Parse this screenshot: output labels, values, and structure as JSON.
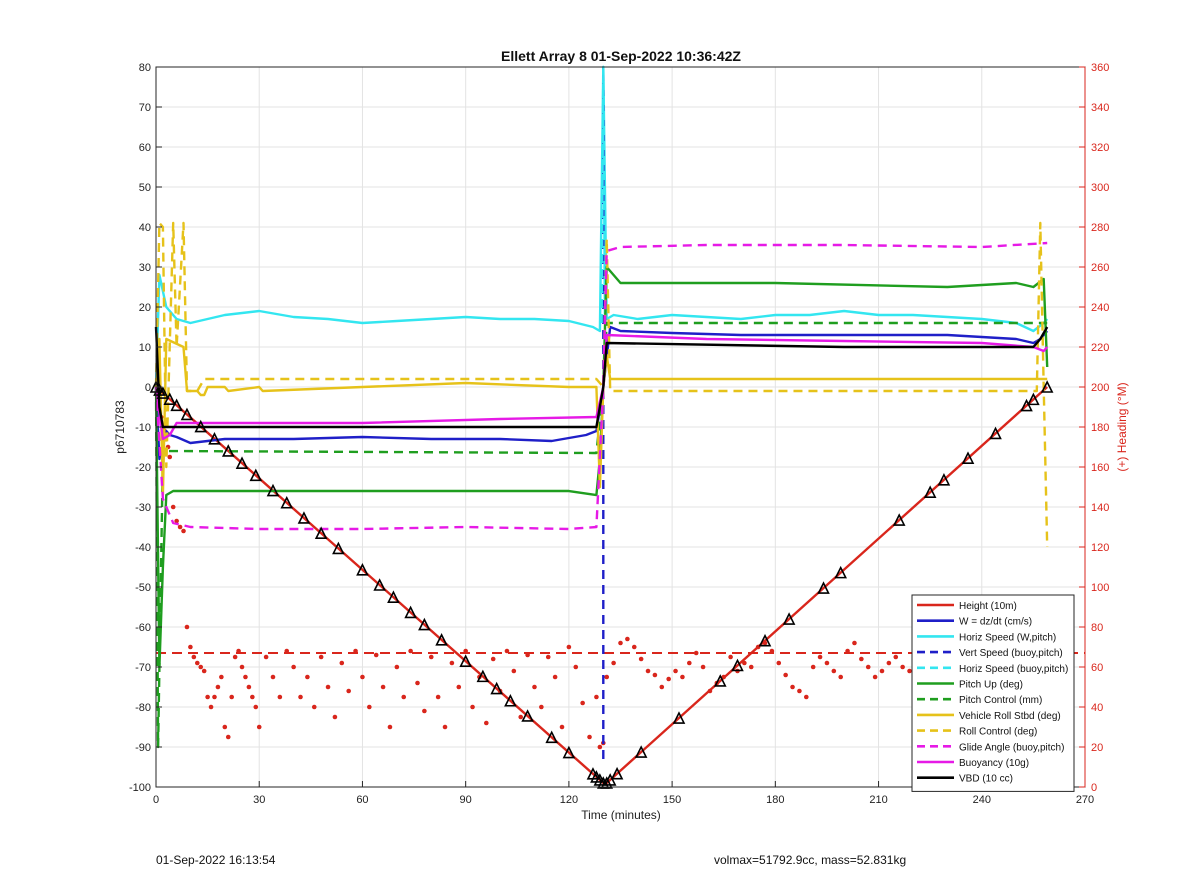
{
  "page": {
    "footer_left": "01-Sep-2022 16:13:54",
    "footer_right": "volmax=51792.9cc, mass=52.831kg"
  },
  "chart_data": {
    "type": "line",
    "title": "Ellett Array 8 01-Sep-2022 10:36:42Z",
    "xlabel": "Time (minutes)",
    "ylabel": "p6710783",
    "y2label": "(+) Heading (°M)",
    "xlim": [
      0,
      270
    ],
    "ylim": [
      -100,
      80
    ],
    "y2lim": [
      0,
      360
    ],
    "xticks": [
      0,
      30,
      60,
      90,
      120,
      150,
      180,
      210,
      240,
      270
    ],
    "yticks": [
      -100,
      -90,
      -80,
      -70,
      -60,
      -50,
      -40,
      -30,
      -20,
      -10,
      0,
      10,
      20,
      30,
      40,
      50,
      60,
      70,
      80
    ],
    "y2ticks": [
      0,
      20,
      40,
      60,
      80,
      100,
      120,
      140,
      160,
      180,
      200,
      220,
      240,
      260,
      280,
      300,
      320,
      340,
      360
    ],
    "grid": true,
    "legend_position": "bottom-right",
    "colors": {
      "red": "#d9261c",
      "blue": "#1f1fc8",
      "cyan": "#33e6f0",
      "green": "#1f9e1f",
      "yellow": "#e6c21a",
      "magenta": "#e61ae6",
      "black": "#000000",
      "right_axis": "#d9261c"
    },
    "series": [
      {
        "name": "Height (10m)",
        "color": "#d9261c",
        "style": "solid",
        "axis": "left",
        "x": [
          0,
          130,
          131,
          259
        ],
        "y": [
          0,
          -99,
          -99,
          0
        ]
      },
      {
        "name": "W = dz/dt (cm/s)",
        "color": "#1f1fc8",
        "style": "solid",
        "axis": "left",
        "x": [
          0,
          1,
          2,
          3,
          4,
          6,
          10,
          20,
          40,
          60,
          80,
          100,
          115,
          125,
          128,
          130,
          132,
          135,
          150,
          170,
          200,
          230,
          250,
          255,
          257,
          258,
          259
        ],
        "y": [
          0,
          -18,
          -14,
          -11,
          -12,
          -12.5,
          -14,
          -13,
          -13,
          -12.5,
          -13,
          -13,
          -13.5,
          -12,
          -11,
          0,
          15,
          14,
          13.5,
          13,
          13,
          13,
          12,
          11,
          12,
          13,
          14
        ]
      },
      {
        "name": "Horiz Speed (W,pitch)",
        "color": "#33e6f0",
        "style": "solid",
        "axis": "left",
        "x": [
          0,
          1,
          3,
          6,
          10,
          20,
          30,
          40,
          50,
          60,
          70,
          80,
          90,
          100,
          110,
          120,
          127,
          129,
          130,
          131,
          133,
          140,
          150,
          160,
          170,
          180,
          190,
          200,
          210,
          220,
          230,
          240,
          250,
          255,
          258,
          259
        ],
        "y": [
          0,
          28,
          20,
          17,
          16,
          18,
          19,
          17.5,
          17,
          16,
          16.5,
          17,
          17.5,
          17,
          17,
          16.5,
          15,
          14,
          80,
          17,
          18,
          17,
          18,
          17.5,
          17,
          18,
          18,
          19,
          18,
          18,
          17.5,
          17,
          16,
          14,
          16,
          17
        ]
      },
      {
        "name": "Vert Speed (buoy,pitch)",
        "color": "#1f1fc8",
        "style": "dashed",
        "axis": "left",
        "x": [
          130,
          130
        ],
        "y": [
          -93,
          80
        ]
      },
      {
        "name": "Horiz Speed (buoy,pitch)",
        "color": "#33e6f0",
        "style": "dashed",
        "axis": "left",
        "x": [
          129.5,
          130,
          130.5
        ],
        "y": [
          16,
          80,
          16
        ]
      },
      {
        "name": "Pitch Up (deg)",
        "color": "#1f9e1f",
        "style": "solid",
        "axis": "left",
        "x": [
          0,
          1,
          2,
          3,
          5,
          10,
          30,
          60,
          90,
          120,
          128,
          129,
          130,
          131,
          135,
          180,
          230,
          250,
          255,
          258,
          259
        ],
        "y": [
          0,
          -70,
          -45,
          -27,
          -26,
          -26,
          -26,
          -26,
          -26,
          -26,
          -27,
          -18,
          0,
          30,
          26,
          26,
          25,
          26,
          25,
          27,
          5
        ]
      },
      {
        "name": "Pitch Control (mm)",
        "color": "#1f9e1f",
        "style": "dashed",
        "axis": "left",
        "x": [
          0,
          0.6,
          1,
          2,
          3,
          127,
          128,
          130,
          131,
          259
        ],
        "y": [
          0,
          -90,
          -70,
          -17,
          -16,
          -16.5,
          -16.5,
          0,
          16,
          16
        ]
      },
      {
        "name": "Vehicle Roll Stbd (deg)",
        "color": "#e6c21a",
        "style": "solid",
        "axis": "left",
        "x": [
          0,
          1,
          2,
          3,
          8,
          9,
          12,
          13,
          14,
          15,
          20,
          21,
          30,
          31,
          60,
          90,
          120,
          128,
          129,
          130,
          131,
          132,
          259
        ],
        "y": [
          0,
          12,
          -27,
          12,
          10,
          -1,
          -1,
          -2,
          -2,
          0,
          0,
          -1,
          0,
          -1,
          0,
          1,
          0,
          0,
          -25,
          0,
          8,
          2,
          2
        ]
      },
      {
        "name": "Roll Control (deg)",
        "color": "#e6c21a",
        "style": "dashed",
        "axis": "left",
        "x": [
          0,
          1,
          2,
          3,
          5,
          6,
          8,
          9,
          10,
          12,
          14,
          128,
          130,
          131,
          132,
          256,
          257,
          258,
          259
        ],
        "y": [
          0,
          41,
          40,
          -20,
          41,
          10,
          41,
          -1,
          -1,
          -1,
          2,
          2,
          0,
          37,
          -1,
          -1,
          41,
          0,
          -40
        ]
      },
      {
        "name": "Glide Angle (buoy,pitch)",
        "color": "#e61ae6",
        "style": "dashed",
        "axis": "left",
        "x": [
          0,
          2,
          5,
          10,
          30,
          60,
          90,
          120,
          128,
          130,
          131,
          135,
          160,
          200,
          240,
          259
        ],
        "y": [
          0,
          -28,
          -34,
          -35,
          -35.5,
          -35.5,
          -35,
          -35.5,
          -35,
          0,
          34,
          35,
          35.5,
          35.5,
          35,
          36
        ]
      },
      {
        "name": "Buoyancy (10g)",
        "color": "#e61ae6",
        "style": "solid",
        "axis": "left",
        "x": [
          0,
          2,
          4,
          6,
          10,
          60,
          100,
          128,
          130,
          131,
          160,
          200,
          240,
          255,
          258,
          259
        ],
        "y": [
          0,
          -13,
          -12,
          -9,
          -9,
          -9,
          -8,
          -7.5,
          0,
          13,
          12,
          11.5,
          11,
          10,
          9,
          10
        ]
      },
      {
        "name": "VBD (10 cc)",
        "color": "#000000",
        "style": "solid",
        "axis": "left",
        "x": [
          0,
          1,
          2,
          4,
          128,
          130,
          131,
          200,
          255,
          257,
          259
        ],
        "y": [
          15,
          -5,
          -10,
          -10,
          -10,
          0,
          11,
          10,
          10,
          12,
          15
        ]
      }
    ],
    "heading_reference": {
      "value": 67,
      "color": "#d9261c",
      "style": "dashed",
      "axis": "right"
    },
    "heading_points": {
      "color": "#d9261c",
      "axis": "right",
      "x": [
        0.5,
        1,
        1.5,
        2,
        2.5,
        3,
        3.5,
        4,
        5,
        6,
        7,
        8,
        9,
        10,
        11,
        12,
        13,
        14,
        15,
        16,
        17,
        18,
        19,
        20,
        21,
        22,
        23,
        24,
        25,
        26,
        27,
        28,
        29,
        30,
        32,
        34,
        36,
        38,
        40,
        42,
        44,
        46,
        48,
        50,
        52,
        54,
        56,
        58,
        60,
        62,
        64,
        66,
        68,
        70,
        72,
        74,
        76,
        78,
        80,
        82,
        84,
        86,
        88,
        90,
        92,
        94,
        96,
        98,
        100,
        102,
        104,
        106,
        108,
        110,
        112,
        114,
        116,
        118,
        120,
        122,
        124,
        126,
        128,
        129,
        130,
        131,
        133,
        135,
        137,
        139,
        141,
        143,
        145,
        147,
        149,
        151,
        153,
        155,
        157,
        159,
        161,
        163,
        165,
        167,
        169,
        171,
        173,
        175,
        177,
        179,
        181,
        183,
        185,
        187,
        189,
        191,
        193,
        195,
        197,
        199,
        201,
        203,
        205,
        207,
        209,
        211,
        213,
        215,
        217,
        219,
        221,
        223,
        225,
        227,
        229,
        231,
        233,
        235,
        237,
        239,
        241,
        243,
        245,
        247,
        249,
        251,
        253,
        255,
        256,
        257,
        258
      ],
      "y": [
        200,
        194,
        185,
        180,
        178,
        176,
        170,
        165,
        140,
        133,
        130,
        128,
        80,
        70,
        65,
        62,
        60,
        58,
        45,
        40,
        45,
        50,
        55,
        30,
        25,
        45,
        65,
        68,
        60,
        55,
        50,
        45,
        40,
        30,
        65,
        55,
        45,
        68,
        60,
        45,
        55,
        40,
        65,
        50,
        35,
        62,
        48,
        68,
        55,
        40,
        66,
        50,
        30,
        60,
        45,
        68,
        52,
        38,
        65,
        45,
        30,
        62,
        50,
        68,
        40,
        55,
        32,
        64,
        48,
        68,
        58,
        35,
        66,
        50,
        40,
        65,
        55,
        30,
        70,
        60,
        42,
        25,
        45,
        20,
        22,
        55,
        62,
        72,
        74,
        70,
        64,
        58,
        56,
        50,
        54,
        58,
        55,
        62,
        67,
        60,
        48,
        52,
        55,
        65,
        58,
        62,
        60,
        70,
        72,
        68,
        62,
        56,
        50,
        48,
        45,
        60,
        65,
        62,
        58,
        55,
        68,
        72,
        64,
        60,
        55,
        58,
        62,
        65,
        60,
        58,
        64,
        72,
        70,
        68,
        62,
        60,
        55,
        58,
        66,
        65,
        60,
        62,
        68,
        70,
        64,
        68,
        70,
        75,
        82,
        88,
        78
      ]
    },
    "markers": {
      "style": "triangle",
      "color": "#000000",
      "x": [
        0,
        1,
        2,
        4,
        6,
        9,
        13,
        17,
        21,
        25,
        29,
        34,
        38,
        43,
        48,
        53,
        60,
        65,
        69,
        74,
        78,
        83,
        90,
        95,
        99,
        103,
        108,
        115,
        120,
        127,
        128,
        129,
        130,
        131,
        132,
        134,
        141,
        152,
        164,
        169,
        177,
        184,
        194,
        199,
        216,
        225,
        229,
        236,
        244,
        253,
        255,
        259
      ]
    }
  }
}
